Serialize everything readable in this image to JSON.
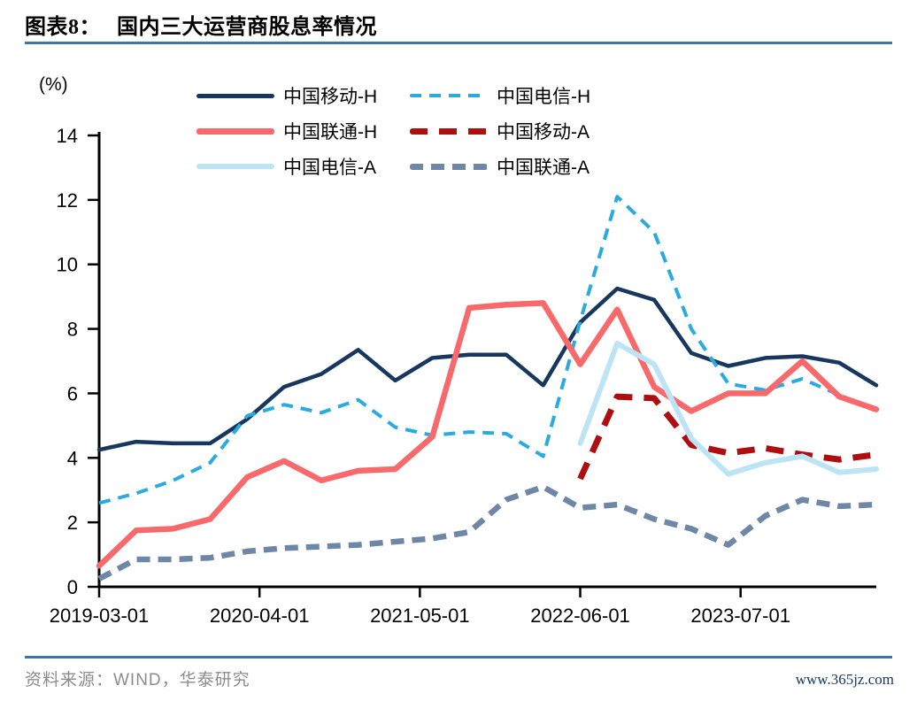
{
  "header": {
    "figure_label": "图表8：",
    "title": "国内三大运营商股息率情况"
  },
  "footer": {
    "source": "资料来源：WIND，华泰研究",
    "watermark": "www.365jz.com"
  },
  "colors": {
    "title_rule": "#3C74B0",
    "footer_rule": "#3C74B0",
    "axis": "#000000",
    "source_text": "#8C8C8C",
    "watermark_text": "#17375E"
  },
  "chart_data": {
    "type": "line",
    "title": "国内三大运营商股息率情况",
    "unit_label": "(%)",
    "legend_position": "top",
    "grid": false,
    "x": [
      "2019-03",
      "2019-06",
      "2019-09",
      "2019-12",
      "2020-03",
      "2020-06",
      "2020-09",
      "2020-12",
      "2021-03",
      "2021-06",
      "2021-09",
      "2021-12",
      "2022-03",
      "2022-06",
      "2022-09",
      "2022-12",
      "2023-03",
      "2023-06",
      "2023-09",
      "2023-12",
      "2024-03",
      "2024-06"
    ],
    "x_axis": {
      "tick_labels": [
        "2019-03-01",
        "2020-04-01",
        "2021-05-01",
        "2022-06-01",
        "2023-07-01"
      ],
      "tick_month_offsets": [
        0,
        13,
        26,
        39,
        52
      ]
    },
    "y_axis": {
      "min": 0,
      "max": 14,
      "tick_step": 2,
      "ticks": [
        0,
        2,
        4,
        6,
        8,
        10,
        12,
        14
      ]
    },
    "series": [
      {
        "name": "中国移动-H",
        "color": "#17375E",
        "style": "solid",
        "width": 4.5,
        "values": [
          4.25,
          4.5,
          4.45,
          4.45,
          5.2,
          6.2,
          6.6,
          7.35,
          6.4,
          7.1,
          7.2,
          7.2,
          6.25,
          8.2,
          9.25,
          8.9,
          7.25,
          6.85,
          7.1,
          7.15,
          6.95,
          6.25
        ]
      },
      {
        "name": "中国电信-H",
        "color": "#29ABE2",
        "style": "dashed",
        "dash": "13 9",
        "width": 4,
        "values": [
          2.6,
          2.9,
          3.3,
          3.85,
          5.3,
          5.65,
          5.4,
          5.8,
          4.95,
          4.7,
          4.8,
          4.75,
          4.05,
          8.25,
          12.1,
          11.0,
          8.0,
          6.3,
          6.1,
          6.45,
          5.95,
          5.45
        ]
      },
      {
        "name": "中国联通-H",
        "color": "#F8696B",
        "style": "solid",
        "width": 6.5,
        "values": [
          0.65,
          1.75,
          1.8,
          2.1,
          3.4,
          3.9,
          3.3,
          3.6,
          3.65,
          4.65,
          8.65,
          8.75,
          8.8,
          6.9,
          8.6,
          6.2,
          5.45,
          6.0,
          6.0,
          7.0,
          5.9,
          5.5
        ]
      },
      {
        "name": "中国移动-A",
        "color": "#AE0E10",
        "style": "dashed",
        "dash": "20 13",
        "width": 7,
        "values": [
          null,
          null,
          null,
          null,
          null,
          null,
          null,
          null,
          null,
          null,
          null,
          null,
          null,
          3.35,
          5.9,
          5.85,
          4.4,
          4.15,
          4.3,
          4.1,
          3.95,
          4.1
        ]
      },
      {
        "name": "中国电信-A",
        "color": "#BDE4F5",
        "style": "solid",
        "width": 6,
        "values": [
          null,
          null,
          null,
          null,
          null,
          null,
          null,
          null,
          null,
          null,
          null,
          null,
          null,
          4.45,
          7.55,
          6.9,
          4.6,
          3.5,
          3.85,
          4.05,
          3.55,
          3.65
        ]
      },
      {
        "name": "中国联通-A",
        "color": "#6F87A6",
        "style": "dashed",
        "dash": "15 9",
        "width": 6.5,
        "values": [
          0.25,
          0.85,
          0.85,
          0.9,
          1.1,
          1.2,
          1.25,
          1.3,
          1.4,
          1.5,
          1.7,
          2.7,
          3.1,
          2.45,
          2.55,
          2.1,
          1.8,
          1.3,
          2.2,
          2.7,
          2.5,
          2.55
        ]
      }
    ]
  }
}
